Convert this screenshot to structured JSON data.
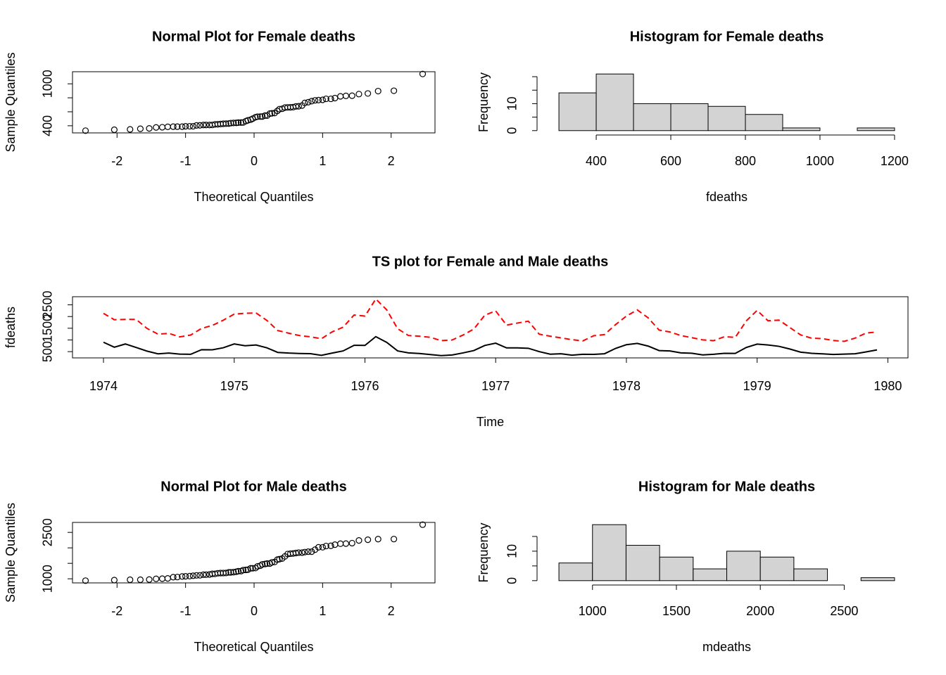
{
  "chart_data": [
    {
      "type": "scatter",
      "title": "Normal Plot for Female deaths",
      "x_label": "Theoretical Quantiles",
      "y_label": "Sample Quantiles",
      "x": [
        -2.46,
        -2.04,
        -1.81,
        -1.66,
        -1.53,
        -1.43,
        -1.34,
        -1.26,
        -1.18,
        -1.12,
        -1.05,
        -1.0,
        -0.94,
        -0.89,
        -0.84,
        -0.79,
        -0.74,
        -0.7,
        -0.65,
        -0.61,
        -0.57,
        -0.53,
        -0.49,
        -0.45,
        -0.41,
        -0.37,
        -0.34,
        -0.3,
        -0.26,
        -0.23,
        -0.19,
        -0.16,
        -0.12,
        -0.09,
        -0.05,
        -0.02,
        0.02,
        0.05,
        0.09,
        0.12,
        0.16,
        0.19,
        0.23,
        0.26,
        0.3,
        0.34,
        0.37,
        0.41,
        0.45,
        0.49,
        0.53,
        0.57,
        0.61,
        0.65,
        0.7,
        0.74,
        0.79,
        0.84,
        0.89,
        0.94,
        1.0,
        1.05,
        1.12,
        1.18,
        1.26,
        1.34,
        1.43,
        1.53,
        1.66,
        1.81,
        2.04,
        2.46
      ],
      "values": [
        330,
        343,
        348,
        357,
        362,
        376,
        379,
        385,
        387,
        387,
        387,
        392,
        393,
        393,
        405,
        406,
        411,
        411,
        411,
        412,
        420,
        421,
        425,
        429,
        430,
        431,
        438,
        440,
        441,
        445,
        446,
        447,
        467,
        478,
        487,
        502,
        522,
        530,
        531,
        532,
        546,
        546,
        574,
        578,
        582,
        612,
        638,
        643,
        660,
        663,
        664,
        666,
        677,
        679,
        689,
        727,
        737,
        752,
        764,
        767,
        771,
        785,
        785,
        796,
        821,
        827,
        830,
        853,
        862,
        896,
        901,
        1141
      ],
      "color": "#000000",
      "xlim": [
        -2.65,
        2.64
      ],
      "ylim": [
        298,
        1173
      ],
      "xticks": [
        -2,
        -1,
        0,
        1,
        2
      ],
      "yticks": [
        400,
        1000
      ],
      "yticks_minor": [
        600,
        800
      ]
    },
    {
      "type": "histogram",
      "title": "Histogram for Female deaths",
      "x_label": "fdeaths",
      "y_label": "Frequency",
      "bins": [
        300,
        400,
        500,
        600,
        700,
        800,
        900,
        1000,
        1100,
        1200
      ],
      "values": [
        14,
        21,
        10,
        10,
        9,
        6,
        1,
        0,
        1
      ],
      "color": "#d3d3d3",
      "xlim": [
        264,
        1236
      ],
      "ylim": [
        -0.84,
        21.84
      ],
      "xticks": [
        400,
        600,
        800,
        1000,
        1200
      ],
      "yticks": [
        0,
        10
      ],
      "yticks_minor": [
        5,
        15,
        20
      ]
    },
    {
      "type": "line",
      "title": "TS plot for Female and Male deaths",
      "x_label": "Time",
      "y_label": "fdeaths",
      "x": [
        1974,
        1974.083,
        1974.167,
        1974.25,
        1974.333,
        1974.417,
        1974.5,
        1974.583,
        1974.667,
        1974.75,
        1974.833,
        1974.917,
        1975,
        1975.083,
        1975.167,
        1975.25,
        1975.333,
        1975.417,
        1975.5,
        1975.583,
        1975.667,
        1975.75,
        1975.833,
        1975.917,
        1976,
        1976.083,
        1976.167,
        1976.25,
        1976.333,
        1976.417,
        1976.5,
        1976.583,
        1976.667,
        1976.75,
        1976.833,
        1976.917,
        1977,
        1977.083,
        1977.167,
        1977.25,
        1977.333,
        1977.417,
        1977.5,
        1977.583,
        1977.667,
        1977.75,
        1977.833,
        1977.917,
        1978,
        1978.083,
        1978.167,
        1978.25,
        1978.333,
        1978.417,
        1978.5,
        1978.583,
        1978.667,
        1978.75,
        1978.833,
        1978.917,
        1979,
        1979.083,
        1979.167,
        1979.25,
        1979.333,
        1979.417,
        1979.5,
        1979.583,
        1979.667,
        1979.75,
        1979.833,
        1979.917
      ],
      "series": [
        {
          "color": "#000000",
          "dashed": false,
          "values": [
            901,
            689,
            827,
            677,
            522,
            406,
            441,
            393,
            387,
            582,
            578,
            666,
            830,
            752,
            785,
            664,
            467,
            438,
            421,
            412,
            343,
            440,
            531,
            771,
            767,
            1141,
            896,
            532,
            447,
            420,
            376,
            330,
            357,
            445,
            546,
            764,
            862,
            660,
            663,
            643,
            502,
            392,
            411,
            348,
            387,
            385,
            411,
            638,
            796,
            853,
            737,
            546,
            530,
            446,
            431,
            362,
            387,
            430,
            425,
            679,
            821,
            785,
            727,
            612,
            478,
            429,
            405,
            379,
            393,
            411,
            487,
            574
          ]
        },
        {
          "color": "#ff0000",
          "dashed": true,
          "values": [
            2134,
            1863,
            1877,
            1877,
            1492,
            1249,
            1280,
            1131,
            1209,
            1492,
            1621,
            1846,
            2103,
            2137,
            2153,
            1833,
            1403,
            1288,
            1186,
            1133,
            1053,
            1347,
            1545,
            2066,
            2020,
            2750,
            2283,
            1479,
            1189,
            1160,
            1113,
            970,
            999,
            1208,
            1467,
            2059,
            2240,
            1634,
            1722,
            1801,
            1246,
            1162,
            1087,
            1013,
            959,
            1179,
            1229,
            1655,
            2019,
            2284,
            1942,
            1423,
            1340,
            1187,
            1098,
            1004,
            970,
            1140,
            1110,
            1812,
            2263,
            1820,
            1846,
            1531,
            1215,
            1075,
            1056,
            975,
            940,
            1081,
            1294,
            1341
          ]
        }
      ],
      "xlim": [
        1973.763,
        1980.154
      ],
      "ylim": [
        233,
        2847
      ],
      "xticks": [
        1974,
        1975,
        1976,
        1977,
        1978,
        1979,
        1980
      ],
      "yticks": [
        500,
        1500,
        2500
      ],
      "yticks_minor": [
        1000,
        2000
      ]
    },
    {
      "type": "scatter",
      "title": "Normal Plot for Male deaths",
      "x_label": "Theoretical Quantiles",
      "y_label": "Sample Quantiles",
      "x": [
        -2.46,
        -2.04,
        -1.81,
        -1.66,
        -1.53,
        -1.43,
        -1.34,
        -1.26,
        -1.18,
        -1.12,
        -1.05,
        -1.0,
        -0.94,
        -0.89,
        -0.84,
        -0.79,
        -0.74,
        -0.7,
        -0.65,
        -0.61,
        -0.57,
        -0.53,
        -0.49,
        -0.45,
        -0.41,
        -0.37,
        -0.34,
        -0.3,
        -0.26,
        -0.23,
        -0.19,
        -0.16,
        -0.12,
        -0.09,
        -0.05,
        -0.02,
        0.02,
        0.05,
        0.09,
        0.12,
        0.16,
        0.19,
        0.23,
        0.26,
        0.3,
        0.34,
        0.37,
        0.41,
        0.45,
        0.49,
        0.53,
        0.57,
        0.61,
        0.65,
        0.7,
        0.74,
        0.79,
        0.84,
        0.89,
        0.94,
        1.0,
        1.05,
        1.12,
        1.18,
        1.26,
        1.34,
        1.43,
        1.53,
        1.66,
        1.81,
        2.04,
        2.46
      ],
      "values": [
        940,
        959,
        970,
        970,
        975,
        999,
        1004,
        1013,
        1053,
        1056,
        1075,
        1081,
        1087,
        1098,
        1110,
        1113,
        1131,
        1133,
        1140,
        1160,
        1162,
        1179,
        1186,
        1187,
        1189,
        1208,
        1209,
        1215,
        1229,
        1246,
        1249,
        1280,
        1288,
        1294,
        1340,
        1341,
        1347,
        1403,
        1423,
        1467,
        1479,
        1492,
        1492,
        1531,
        1545,
        1621,
        1634,
        1655,
        1722,
        1801,
        1812,
        1820,
        1833,
        1846,
        1846,
        1863,
        1877,
        1877,
        1942,
        2019,
        2020,
        2059,
        2066,
        2103,
        2134,
        2137,
        2153,
        2240,
        2263,
        2283,
        2284,
        2750
      ],
      "color": "#000000",
      "xlim": [
        -2.65,
        2.64
      ],
      "ylim": [
        867.6,
        2822.4
      ],
      "xticks": [
        -2,
        -1,
        0,
        1,
        2
      ],
      "yticks": [
        1000,
        2500
      ],
      "yticks_minor": [
        1500,
        2000
      ]
    },
    {
      "type": "histogram",
      "title": "Histogram for Male deaths",
      "x_label": "mdeaths",
      "y_label": "Frequency",
      "bins": [
        800,
        1000,
        1200,
        1400,
        1600,
        1800,
        2000,
        2200,
        2400,
        2600,
        2800
      ],
      "values": [
        6,
        19,
        12,
        8,
        4,
        10,
        8,
        4,
        0,
        1
      ],
      "color": "#d3d3d3",
      "xlim": [
        720,
        2880
      ],
      "ylim": [
        -0.76,
        19.76
      ],
      "xticks": [
        1000,
        1500,
        2000,
        2500
      ],
      "yticks": [
        0,
        10
      ],
      "yticks_minor": [
        5,
        15
      ]
    }
  ]
}
